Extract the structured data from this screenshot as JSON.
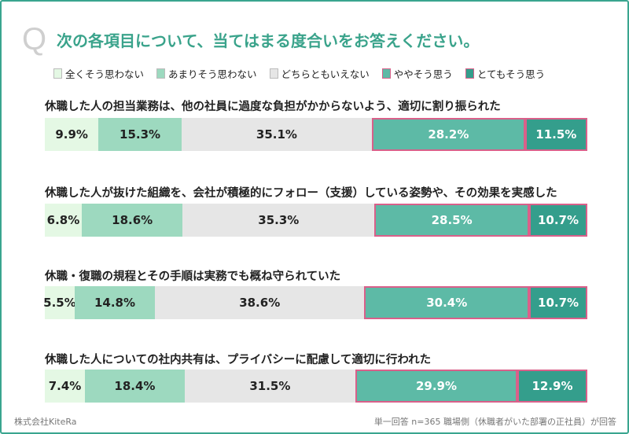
{
  "header": {
    "q_mark": "Q",
    "title": "次の各項目について、当てはまる度合いをお答えください。"
  },
  "footer": {
    "company": "株式会社KiteRa",
    "note": "単一回答 n=365 職場側（休職者がいた部署の正社員）が回答"
  },
  "chart_data": {
    "type": "bar",
    "orientation": "horizontal-stacked-100",
    "title": "次の各項目について、当てはまる度合いをお答えください。",
    "legend_position": "top",
    "highlight_border_color": "#d9608a",
    "series": [
      {
        "name": "全くそう思わない",
        "color": "#e4f8e4",
        "text_color": "#222222",
        "highlighted": false,
        "values": [
          9.9,
          6.8,
          5.5,
          7.4
        ]
      },
      {
        "name": "あまりそう思わない",
        "color": "#9dd9bf",
        "text_color": "#222222",
        "highlighted": false,
        "values": [
          15.3,
          18.6,
          14.8,
          18.4
        ]
      },
      {
        "name": "どちらともいえない",
        "color": "#e6e6e6",
        "text_color": "#222222",
        "highlighted": false,
        "values": [
          35.1,
          35.3,
          38.6,
          31.5
        ]
      },
      {
        "name": "ややそう思う",
        "color": "#5dbaa6",
        "text_color": "#ffffff",
        "highlighted": true,
        "values": [
          28.2,
          28.5,
          30.4,
          29.9
        ]
      },
      {
        "name": "とてもそう思う",
        "color": "#349e8c",
        "text_color": "#ffffff",
        "highlighted": true,
        "values": [
          11.5,
          10.7,
          10.7,
          12.9
        ]
      }
    ],
    "categories": [
      "休職した人の担当業務は、他の社員に過度な負担がかからないよう、適切に割り振られた",
      "休職した人が抜けた組織を、会社が積極的にフォロー（支援）している姿勢や、その効果を実感した",
      "休職・復職の規程とその手順は実務でも概ね守られていた",
      "休職した人についての社内共有は、プライバシーに配慮して適切に行われた"
    ],
    "value_format": "{v}%"
  }
}
